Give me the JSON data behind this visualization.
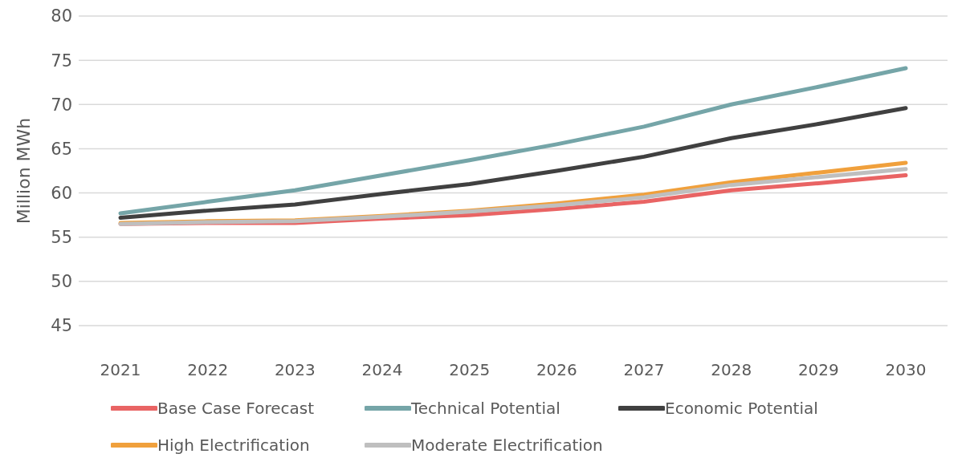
{
  "chart_data": {
    "type": "line",
    "ylabel": "Million MWh",
    "categories": [
      "2021",
      "2022",
      "2023",
      "2024",
      "2025",
      "2026",
      "2027",
      "2028",
      "2029",
      "2030"
    ],
    "series": [
      {
        "name": "Base Case Forecast",
        "color": "#e96464",
        "values": [
          56.5,
          56.6,
          56.6,
          57.1,
          57.5,
          58.2,
          59.0,
          60.3,
          61.1,
          62.0
        ]
      },
      {
        "name": "Technical Potential",
        "color": "#75a5a8",
        "values": [
          57.7,
          59.0,
          60.3,
          62.0,
          63.7,
          65.5,
          67.5,
          70.0,
          72.0,
          74.1
        ]
      },
      {
        "name": "Economic Potential",
        "color": "#404040",
        "values": [
          57.2,
          58.0,
          58.7,
          59.9,
          61.0,
          62.5,
          64.1,
          66.2,
          67.8,
          69.6
        ]
      },
      {
        "name": "High Electrification",
        "color": "#f0a03c",
        "values": [
          56.6,
          56.8,
          56.9,
          57.4,
          58.0,
          58.8,
          59.8,
          61.2,
          62.3,
          63.4
        ]
      },
      {
        "name": "Moderate Electrification",
        "color": "#bfbfbf",
        "values": [
          56.5,
          56.7,
          56.8,
          57.3,
          57.9,
          58.6,
          59.5,
          60.9,
          61.8,
          62.7
        ]
      }
    ],
    "ylim": [
      45,
      80
    ],
    "yticks": [
      45,
      50,
      55,
      60,
      65,
      70,
      75,
      80
    ],
    "grid": "y",
    "legend": "bottom",
    "marker": "none",
    "line_style": "solid"
  }
}
